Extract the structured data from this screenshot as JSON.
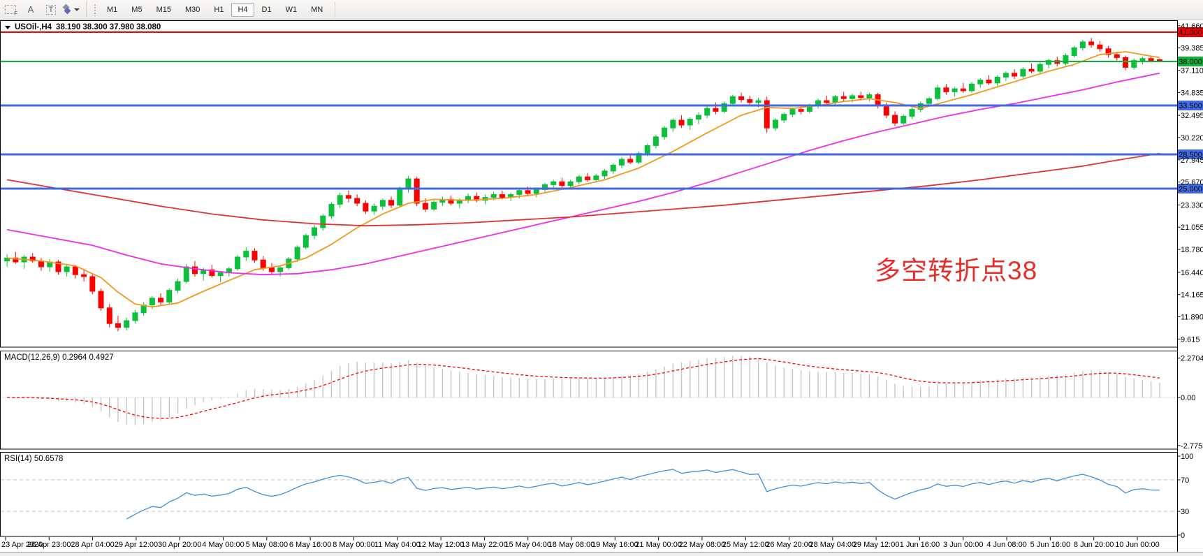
{
  "toolbar": {
    "tools": {
      "f": "F",
      "a": "A",
      "t": "T"
    },
    "timeframes": [
      "M1",
      "M5",
      "M15",
      "M30",
      "H1",
      "H4",
      "D1",
      "W1",
      "MN"
    ],
    "active_timeframe": "H4"
  },
  "chart": {
    "title": "USOil-,H4",
    "ohlc": "38.190 38.300 37.980 38.080",
    "symbol": "USOil-",
    "timeframe": "H4"
  },
  "annotation": {
    "text": "多空转折点38",
    "color": "#e62e2a"
  },
  "price_axis": {
    "ticks": [
      "41.660",
      "39.385",
      "37.110",
      "34.835",
      "32.495",
      "30.220",
      "27.945",
      "25.670",
      "23.330",
      "21.055",
      "18.780",
      "16.440",
      "14.165",
      "11.890",
      "9.615"
    ]
  },
  "time_axis": {
    "labels": [
      "23 Apr 2020",
      "26 Apr 23:00",
      "28 Apr 04:00",
      "29 Apr 12:00",
      "30 Apr 20:00",
      "4 May 00:00",
      "5 May 08:00",
      "6 May 16:00",
      "8 May 00:00",
      "11 May 04:00",
      "12 May 12:00",
      "13 May 22:00",
      "15 May 04:00",
      "18 May 08:00",
      "19 May 16:00",
      "21 May 00:00",
      "22 May 08:00",
      "25 May 12:00",
      "26 May 20:00",
      "28 May 04:00",
      "29 May 12:00",
      "1 Jun 16:00",
      "3 Jun 00:00",
      "4 Jun 08:00",
      "5 Jun 16:00",
      "8 Jun 20:00",
      "10 Jun 00:00"
    ]
  },
  "indicators": {
    "macd": {
      "label_full": "MACD(12,26,9) 0.2964 0.4927",
      "name": "MACD",
      "params": "12,26,9",
      "values": [
        "0.2964",
        "0.4927"
      ],
      "axis_ticks": [
        "2.2704",
        "0.00",
        "-2.7759"
      ],
      "histogram_color": "#c6c6c6",
      "signal_color": "#ff0000"
    },
    "rsi": {
      "label_full": "RSI(14) 50.6578",
      "name": "RSI",
      "period": "14",
      "value": "50.6578",
      "axis_ticks": [
        "100",
        "70",
        "30",
        "0"
      ],
      "level_lines": [
        70,
        30
      ],
      "line_color": "#3f8fdc",
      "level_color": "#c0c0c0"
    }
  },
  "chart_data": {
    "type": "candlestick",
    "title": "USOil-,H4",
    "up_color": "#0cc03c",
    "down_color": "#ff0000",
    "visible_price_range": [
      9.615,
      41.66
    ],
    "levels": [
      {
        "label": "41.000",
        "price": 41.0,
        "color": "#f50000",
        "width": 2
      },
      {
        "label": "38.000",
        "price": 38.0,
        "color": "#12b13c",
        "width": 2
      },
      {
        "label": "33.500",
        "price": 33.5,
        "color": "#4169e1",
        "width": 3
      },
      {
        "label": "28.500",
        "price": 28.5,
        "color": "#4169e1",
        "width": 3
      },
      {
        "label": "25.000",
        "price": 25.0,
        "color": "#4169e1",
        "width": 3
      }
    ],
    "candles": [
      [
        17.6,
        18.3,
        17.0,
        17.9
      ],
      [
        17.9,
        18.5,
        17.3,
        17.5
      ],
      [
        17.5,
        18.2,
        16.8,
        18.0
      ],
      [
        18.0,
        18.4,
        17.4,
        17.6
      ],
      [
        17.6,
        17.9,
        16.6,
        17.0
      ],
      [
        17.0,
        17.8,
        16.5,
        17.5
      ],
      [
        17.5,
        17.7,
        16.2,
        16.5
      ],
      [
        16.5,
        17.3,
        16.0,
        17.0
      ],
      [
        17.0,
        17.2,
        15.8,
        16.2
      ],
      [
        16.2,
        16.8,
        15.5,
        16.0
      ],
      [
        16.0,
        16.2,
        14.2,
        14.5
      ],
      [
        14.5,
        14.8,
        12.5,
        12.8
      ],
      [
        12.8,
        13.2,
        10.8,
        11.2
      ],
      [
        11.2,
        12.0,
        10.4,
        10.8
      ],
      [
        10.8,
        11.8,
        10.5,
        11.5
      ],
      [
        11.5,
        12.6,
        11.2,
        12.3
      ],
      [
        12.3,
        13.4,
        12.0,
        13.1
      ],
      [
        13.1,
        14.0,
        12.7,
        13.8
      ],
      [
        13.8,
        14.3,
        13.0,
        13.4
      ],
      [
        13.4,
        14.8,
        13.2,
        14.6
      ],
      [
        14.6,
        15.8,
        14.3,
        15.5
      ],
      [
        15.5,
        17.3,
        15.3,
        17.0
      ],
      [
        17.0,
        17.6,
        16.0,
        16.3
      ],
      [
        16.3,
        16.9,
        15.6,
        16.7
      ],
      [
        16.7,
        17.2,
        15.9,
        16.1
      ],
      [
        16.1,
        16.6,
        15.4,
        16.4
      ],
      [
        16.4,
        17.0,
        16.0,
        16.8
      ],
      [
        16.8,
        18.2,
        16.6,
        18.0
      ],
      [
        18.0,
        19.0,
        17.6,
        18.6
      ],
      [
        18.6,
        18.9,
        17.4,
        17.7
      ],
      [
        17.7,
        18.1,
        16.6,
        16.9
      ],
      [
        16.9,
        17.4,
        16.2,
        16.5
      ],
      [
        16.5,
        17.1,
        16.0,
        16.9
      ],
      [
        16.9,
        18.0,
        16.7,
        17.8
      ],
      [
        17.8,
        19.2,
        17.5,
        19.0
      ],
      [
        19.0,
        20.4,
        18.8,
        20.2
      ],
      [
        20.2,
        21.3,
        19.8,
        21.0
      ],
      [
        21.0,
        22.4,
        20.7,
        22.2
      ],
      [
        22.2,
        23.6,
        21.9,
        23.4
      ],
      [
        23.4,
        24.6,
        23.0,
        24.3
      ],
      [
        24.3,
        24.8,
        23.6,
        24.0
      ],
      [
        24.0,
        24.4,
        23.2,
        23.5
      ],
      [
        23.5,
        23.8,
        22.4,
        22.7
      ],
      [
        22.7,
        23.5,
        22.3,
        23.2
      ],
      [
        23.2,
        24.0,
        22.8,
        23.8
      ],
      [
        23.8,
        24.2,
        23.0,
        23.3
      ],
      [
        23.3,
        25.2,
        23.1,
        25.0
      ],
      [
        25.0,
        26.3,
        24.6,
        26.0
      ],
      [
        26.0,
        26.2,
        23.2,
        23.5
      ],
      [
        23.5,
        24.0,
        22.6,
        22.9
      ],
      [
        22.9,
        23.8,
        22.7,
        23.6
      ],
      [
        23.6,
        24.2,
        23.2,
        23.9
      ],
      [
        23.9,
        24.3,
        23.3,
        23.5
      ],
      [
        23.5,
        24.0,
        23.0,
        23.8
      ],
      [
        23.8,
        24.5,
        23.5,
        24.2
      ],
      [
        24.2,
        24.6,
        23.6,
        23.8
      ],
      [
        23.8,
        24.4,
        23.4,
        24.1
      ],
      [
        24.1,
        24.7,
        23.8,
        24.4
      ],
      [
        24.4,
        24.8,
        23.9,
        24.1
      ],
      [
        24.1,
        24.6,
        23.7,
        24.4
      ],
      [
        24.4,
        25.0,
        24.0,
        24.8
      ],
      [
        24.8,
        25.2,
        24.2,
        24.5
      ],
      [
        24.5,
        25.1,
        24.1,
        24.9
      ],
      [
        24.9,
        25.6,
        24.6,
        25.4
      ],
      [
        25.4,
        25.9,
        25.0,
        25.7
      ],
      [
        25.7,
        26.1,
        25.1,
        25.3
      ],
      [
        25.3,
        25.9,
        24.9,
        25.7
      ],
      [
        25.7,
        26.4,
        25.4,
        26.2
      ],
      [
        26.2,
        26.6,
        25.7,
        25.9
      ],
      [
        25.9,
        26.5,
        25.6,
        26.3
      ],
      [
        26.3,
        27.0,
        26.0,
        26.8
      ],
      [
        26.8,
        27.6,
        26.5,
        27.4
      ],
      [
        27.4,
        28.2,
        27.1,
        28.0
      ],
      [
        28.0,
        28.6,
        27.5,
        27.7
      ],
      [
        27.7,
        28.8,
        27.5,
        28.6
      ],
      [
        28.6,
        29.6,
        28.3,
        29.4
      ],
      [
        29.4,
        30.5,
        29.1,
        30.3
      ],
      [
        30.3,
        31.4,
        30.0,
        31.2
      ],
      [
        31.2,
        32.2,
        30.8,
        32.0
      ],
      [
        32.0,
        32.5,
        31.2,
        31.5
      ],
      [
        31.5,
        32.3,
        31.0,
        32.1
      ],
      [
        32.1,
        32.8,
        31.6,
        32.5
      ],
      [
        32.5,
        33.4,
        32.2,
        33.2
      ],
      [
        33.2,
        33.8,
        32.6,
        32.9
      ],
      [
        32.9,
        33.9,
        32.7,
        33.7
      ],
      [
        33.7,
        34.6,
        33.4,
        34.4
      ],
      [
        34.4,
        34.8,
        33.8,
        34.1
      ],
      [
        34.1,
        34.5,
        33.5,
        33.8
      ],
      [
        33.8,
        34.3,
        33.3,
        34.0
      ],
      [
        34.0,
        34.4,
        30.7,
        31.2
      ],
      [
        31.2,
        32.2,
        30.9,
        32.0
      ],
      [
        32.0,
        32.8,
        31.7,
        32.6
      ],
      [
        32.6,
        33.3,
        32.3,
        33.1
      ],
      [
        33.1,
        33.6,
        32.6,
        32.9
      ],
      [
        32.9,
        33.7,
        32.7,
        33.5
      ],
      [
        33.5,
        34.2,
        33.2,
        34.0
      ],
      [
        34.0,
        34.5,
        33.6,
        33.8
      ],
      [
        33.8,
        34.6,
        33.5,
        34.4
      ],
      [
        34.4,
        34.9,
        33.9,
        34.2
      ],
      [
        34.2,
        34.7,
        33.8,
        34.5
      ],
      [
        34.5,
        34.9,
        34.0,
        34.3
      ],
      [
        34.3,
        34.8,
        33.9,
        34.6
      ],
      [
        34.6,
        34.8,
        33.2,
        33.5
      ],
      [
        33.5,
        33.8,
        32.2,
        32.5
      ],
      [
        32.5,
        32.9,
        31.4,
        31.7
      ],
      [
        31.7,
        32.6,
        31.5,
        32.4
      ],
      [
        32.4,
        33.3,
        32.1,
        33.1
      ],
      [
        33.1,
        33.9,
        32.8,
        33.7
      ],
      [
        33.7,
        34.4,
        33.4,
        34.2
      ],
      [
        34.2,
        35.6,
        34.0,
        35.3
      ],
      [
        35.3,
        35.7,
        34.6,
        34.9
      ],
      [
        34.9,
        35.4,
        34.4,
        35.2
      ],
      [
        35.2,
        35.8,
        34.8,
        35.0
      ],
      [
        35.0,
        35.9,
        34.8,
        35.7
      ],
      [
        35.7,
        36.3,
        35.3,
        36.1
      ],
      [
        36.1,
        36.6,
        35.6,
        35.8
      ],
      [
        35.8,
        36.6,
        35.5,
        36.4
      ],
      [
        36.4,
        37.0,
        36.0,
        36.8
      ],
      [
        36.8,
        37.2,
        36.2,
        36.5
      ],
      [
        36.5,
        37.4,
        36.3,
        37.2
      ],
      [
        37.2,
        37.8,
        36.8,
        37.0
      ],
      [
        37.0,
        37.9,
        36.7,
        37.7
      ],
      [
        37.7,
        38.3,
        37.3,
        38.1
      ],
      [
        38.1,
        38.5,
        37.5,
        37.8
      ],
      [
        37.8,
        38.8,
        37.6,
        38.6
      ],
      [
        38.6,
        39.6,
        38.4,
        39.4
      ],
      [
        39.4,
        40.2,
        39.1,
        40.0
      ],
      [
        40.0,
        40.4,
        39.4,
        39.7
      ],
      [
        39.7,
        40.1,
        39.0,
        39.3
      ],
      [
        39.3,
        39.6,
        38.4,
        38.7
      ],
      [
        38.7,
        39.0,
        38.1,
        38.4
      ],
      [
        38.4,
        38.6,
        37.1,
        37.4
      ],
      [
        37.4,
        38.3,
        37.2,
        38.1
      ],
      [
        38.1,
        38.5,
        37.7,
        38.3
      ],
      [
        38.3,
        38.6,
        37.9,
        38.1
      ],
      [
        38.19,
        38.3,
        37.98,
        38.08
      ]
    ],
    "ma_lines": [
      {
        "name": "fast-ma",
        "color": "#f2991d",
        "points": [
          [
            0,
            17.9
          ],
          [
            4,
            17.6
          ],
          [
            8,
            17.1
          ],
          [
            11,
            15.9
          ],
          [
            13,
            14.4
          ],
          [
            15,
            13.2
          ],
          [
            17,
            12.9
          ],
          [
            20,
            13.3
          ],
          [
            23,
            14.5
          ],
          [
            26,
            15.6
          ],
          [
            29,
            16.7
          ],
          [
            32,
            17.1
          ],
          [
            35,
            17.9
          ],
          [
            38,
            19.3
          ],
          [
            41,
            21.0
          ],
          [
            44,
            22.4
          ],
          [
            47,
            23.5
          ],
          [
            50,
            23.9
          ],
          [
            54,
            23.8
          ],
          [
            58,
            24.0
          ],
          [
            62,
            24.4
          ],
          [
            66,
            25.1
          ],
          [
            70,
            25.9
          ],
          [
            74,
            27.1
          ],
          [
            78,
            28.8
          ],
          [
            82,
            30.7
          ],
          [
            86,
            32.5
          ],
          [
            89,
            33.3
          ],
          [
            92,
            33.2
          ],
          [
            95,
            33.5
          ],
          [
            98,
            33.9
          ],
          [
            101,
            34.2
          ],
          [
            104,
            33.8
          ],
          [
            107,
            33.2
          ],
          [
            110,
            33.9
          ],
          [
            113,
            34.6
          ],
          [
            116,
            35.4
          ],
          [
            119,
            36.2
          ],
          [
            122,
            37.0
          ],
          [
            125,
            37.7
          ],
          [
            128,
            38.7
          ],
          [
            131,
            39.0
          ],
          [
            133,
            38.7
          ],
          [
            135,
            38.4
          ]
        ]
      },
      {
        "name": "mid-ma",
        "color": "#ea2fea",
        "points": [
          [
            0,
            20.8
          ],
          [
            5,
            20.0
          ],
          [
            10,
            19.2
          ],
          [
            14,
            18.2
          ],
          [
            18,
            17.3
          ],
          [
            22,
            16.8
          ],
          [
            26,
            16.4
          ],
          [
            30,
            16.2
          ],
          [
            34,
            16.3
          ],
          [
            38,
            16.7
          ],
          [
            42,
            17.3
          ],
          [
            46,
            18.1
          ],
          [
            50,
            18.9
          ],
          [
            54,
            19.7
          ],
          [
            58,
            20.5
          ],
          [
            62,
            21.3
          ],
          [
            66,
            22.1
          ],
          [
            70,
            22.9
          ],
          [
            74,
            23.7
          ],
          [
            78,
            24.6
          ],
          [
            82,
            25.6
          ],
          [
            86,
            26.7
          ],
          [
            90,
            27.8
          ],
          [
            94,
            28.9
          ],
          [
            98,
            29.9
          ],
          [
            102,
            30.8
          ],
          [
            106,
            31.6
          ],
          [
            110,
            32.4
          ],
          [
            114,
            33.1
          ],
          [
            118,
            33.7
          ],
          [
            122,
            34.4
          ],
          [
            126,
            35.1
          ],
          [
            130,
            35.9
          ],
          [
            135,
            36.8
          ]
        ]
      },
      {
        "name": "slow-ma",
        "color": "#e03232",
        "points": [
          [
            0,
            25.9
          ],
          [
            6,
            25.0
          ],
          [
            12,
            24.1
          ],
          [
            18,
            23.2
          ],
          [
            24,
            22.4
          ],
          [
            30,
            21.8
          ],
          [
            36,
            21.4
          ],
          [
            42,
            21.2
          ],
          [
            48,
            21.3
          ],
          [
            54,
            21.5
          ],
          [
            60,
            21.8
          ],
          [
            66,
            22.1
          ],
          [
            72,
            22.5
          ],
          [
            78,
            22.9
          ],
          [
            84,
            23.3
          ],
          [
            90,
            23.8
          ],
          [
            96,
            24.3
          ],
          [
            102,
            24.8
          ],
          [
            108,
            25.3
          ],
          [
            114,
            25.9
          ],
          [
            120,
            26.6
          ],
          [
            126,
            27.3
          ],
          [
            130,
            27.9
          ],
          [
            135,
            28.6
          ]
        ]
      }
    ]
  }
}
